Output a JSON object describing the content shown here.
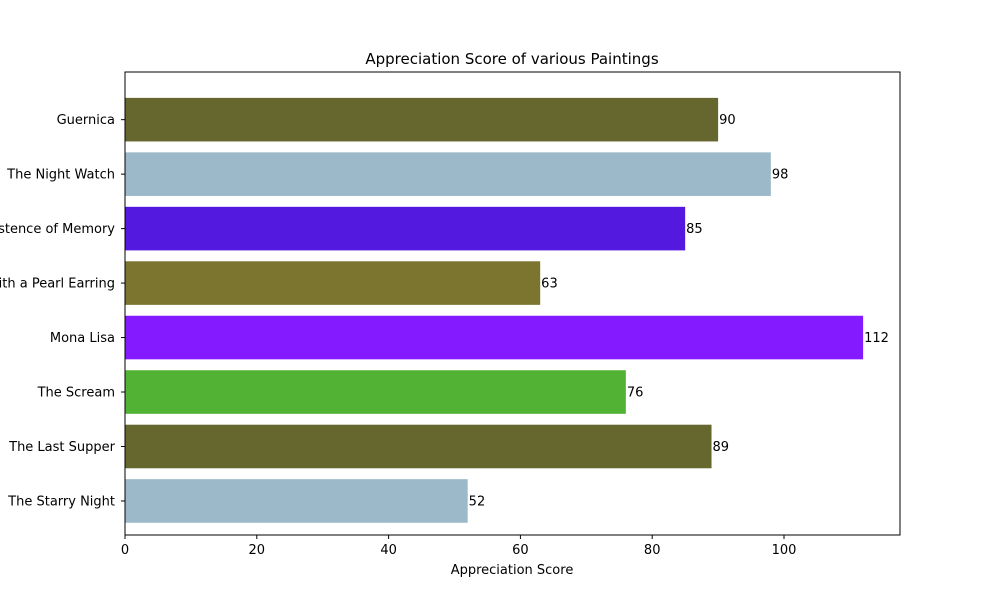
{
  "chart_data": {
    "type": "bar",
    "orientation": "horizontal",
    "title": "Appreciation Score of various Paintings",
    "xlabel": "Appreciation Score",
    "ylabel": "",
    "xlim": [
      0,
      117.6
    ],
    "x_ticks": [
      0,
      20,
      40,
      60,
      80,
      100
    ],
    "grid": false,
    "legend": "none",
    "categories": [
      "The Starry Night",
      "The Last Supper",
      "The Scream",
      "Mona Lisa",
      "Girl with a Pearl Earring",
      "The Persistence of Memory",
      "The Night Watch",
      "Guernica"
    ],
    "values": [
      52,
      89,
      76,
      112,
      63,
      85,
      98,
      90
    ],
    "colors": [
      "#9bb9c9",
      "#66672f",
      "#51b234",
      "#831aff",
      "#7c752f",
      "#5319df",
      "#9bb9c9",
      "#66672f"
    ]
  }
}
